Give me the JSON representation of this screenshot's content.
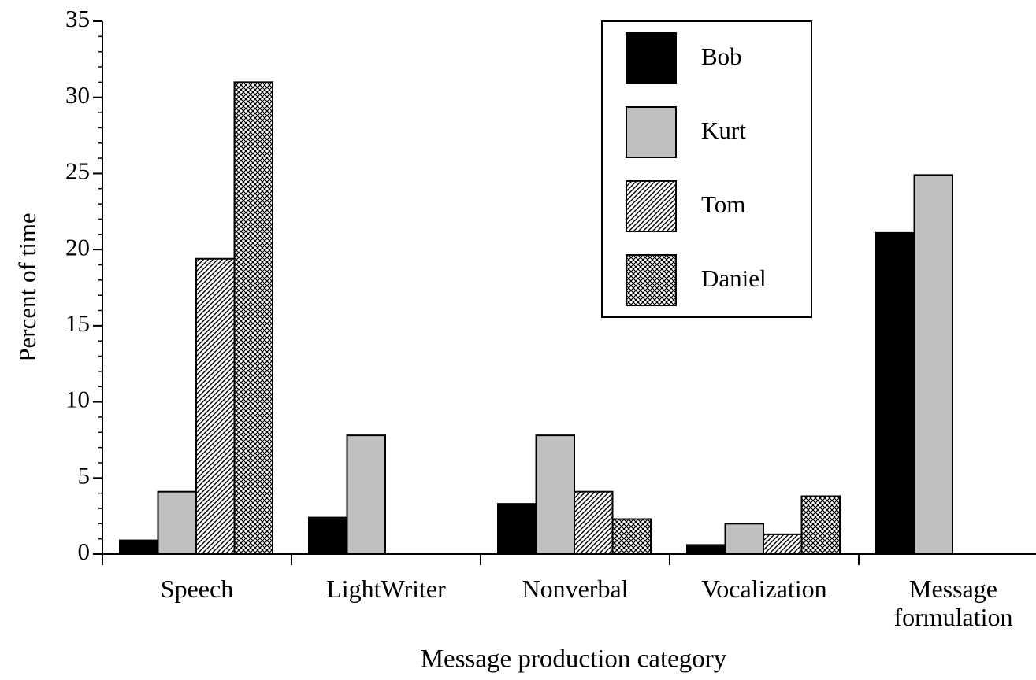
{
  "chart_data": {
    "type": "bar",
    "xlabel": "Message production category",
    "ylabel": "Percent of time",
    "categories": [
      "Speech",
      "LightWriter",
      "Nonverbal",
      "Vocalization",
      "Message formulation"
    ],
    "series": [
      {
        "name": "Bob",
        "color": "#000000",
        "values": [
          0.9,
          2.4,
          3.3,
          0.6,
          21.1
        ]
      },
      {
        "name": "Kurt",
        "color": "#c0c0c0",
        "values": [
          4.1,
          7.8,
          7.8,
          2.0,
          24.9
        ]
      },
      {
        "name": "Tom",
        "color": "#000000",
        "pattern": "diagonal",
        "values": [
          19.4,
          null,
          4.1,
          1.3,
          null
        ]
      },
      {
        "name": "Daniel",
        "color": "#000000",
        "pattern": "cross",
        "values": [
          31.0,
          null,
          2.3,
          3.8,
          null
        ]
      }
    ],
    "ylim": [
      0,
      35
    ],
    "yticks": [
      0,
      5,
      10,
      15,
      20,
      25,
      30,
      35
    ],
    "minor_tick_step": 1,
    "grid": false,
    "legend": "upper right"
  }
}
